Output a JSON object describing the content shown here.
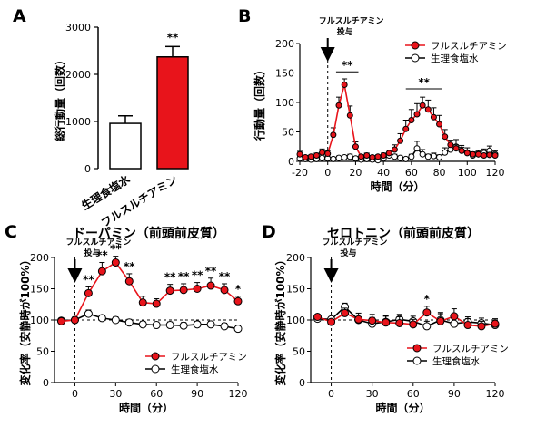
{
  "colors": {
    "drug": "#e8141b",
    "saline": "#ffffff",
    "line": "#000000"
  },
  "chart_data": [
    {
      "panel": "A",
      "type": "bar",
      "ylabel": "総行動量（回数）",
      "ylim": [
        0,
        3000
      ],
      "yticks": [
        "0",
        "1000",
        "2000",
        "3000"
      ],
      "categories": [
        "生理食塩水",
        "フルスルチアミン"
      ],
      "values": [
        960,
        2370
      ],
      "errors": [
        160,
        220
      ],
      "colors": [
        "#ffffff",
        "#e8141b"
      ],
      "significance": [
        "",
        "**"
      ]
    },
    {
      "panel": "B",
      "type": "line",
      "ylabel": "行動量（回数）",
      "xlabel": "時間（分）",
      "xlim": [
        -20,
        120
      ],
      "ylim": [
        0,
        200
      ],
      "xticks": [
        "-20",
        "0",
        "20",
        "40",
        "60",
        "80",
        "100",
        "120"
      ],
      "yticks": [
        "0",
        "50",
        "100",
        "150",
        "200"
      ],
      "injection_label": [
        "フルスルチアミン",
        "投与"
      ],
      "significance": [
        "**",
        "**"
      ],
      "legend": [
        "フルスルチアミン",
        "生理食塩水"
      ],
      "series": [
        {
          "name": "フルスルチアミン",
          "x": [
            -20,
            -16,
            -12,
            -8,
            -4,
            0,
            4,
            8,
            12,
            16,
            20,
            24,
            28,
            32,
            36,
            40,
            44,
            48,
            52,
            56,
            60,
            64,
            68,
            72,
            76,
            80,
            84,
            88,
            92,
            96,
            100,
            104,
            108,
            112,
            116,
            120
          ],
          "y": [
            12,
            7,
            8,
            10,
            15,
            13,
            45,
            95,
            130,
            78,
            25,
            8,
            10,
            7,
            8,
            10,
            14,
            20,
            35,
            55,
            70,
            80,
            95,
            88,
            75,
            63,
            42,
            28,
            22,
            18,
            14,
            12,
            12,
            10,
            11,
            10
          ],
          "err": [
            5,
            3,
            3,
            4,
            6,
            5,
            12,
            14,
            10,
            16,
            8,
            3,
            4,
            3,
            3,
            4,
            5,
            8,
            12,
            15,
            18,
            18,
            14,
            16,
            16,
            15,
            12,
            8,
            6,
            6,
            5,
            4,
            4,
            3,
            4,
            3
          ]
        },
        {
          "name": "生理食塩水",
          "x": [
            -20,
            -16,
            -12,
            -8,
            -4,
            0,
            4,
            8,
            12,
            16,
            20,
            24,
            28,
            32,
            36,
            40,
            44,
            48,
            52,
            56,
            60,
            64,
            68,
            72,
            76,
            80,
            84,
            88,
            92,
            96,
            100,
            104,
            108,
            112,
            116,
            120
          ],
          "y": [
            5,
            4,
            3,
            4,
            6,
            5,
            4,
            6,
            7,
            8,
            5,
            3,
            4,
            3,
            2,
            5,
            10,
            8,
            6,
            4,
            8,
            22,
            12,
            8,
            9,
            7,
            15,
            20,
            25,
            18,
            15,
            10,
            12,
            14,
            18,
            12
          ],
          "err": [
            3,
            2,
            2,
            2,
            3,
            3,
            2,
            3,
            3,
            4,
            3,
            2,
            2,
            2,
            1,
            3,
            4,
            4,
            3,
            2,
            4,
            12,
            8,
            4,
            5,
            4,
            8,
            10,
            12,
            9,
            8,
            5,
            6,
            7,
            8,
            6
          ]
        }
      ]
    },
    {
      "panel": "C",
      "type": "line",
      "title": "ドーパミン（前頭前皮質）",
      "ylabel": "変化率（安静時が100%）",
      "xlabel": "時間（分）",
      "xlim": [
        -15,
        120
      ],
      "ylim": [
        0,
        200
      ],
      "xticks": [
        "0",
        "30",
        "60",
        "90",
        "120"
      ],
      "yticks": [
        "0",
        "50",
        "100",
        "150",
        "200"
      ],
      "injection_label": [
        "フルスルチアミン",
        "投与"
      ],
      "legend": [
        "フルスルチアミン",
        "生理食塩水"
      ],
      "series": [
        {
          "name": "フルスルチアミン",
          "x": [
            -10,
            0,
            10,
            20,
            30,
            40,
            50,
            60,
            70,
            80,
            90,
            100,
            110,
            120
          ],
          "y": [
            98,
            100,
            143,
            178,
            192,
            162,
            128,
            126,
            147,
            148,
            150,
            155,
            148,
            130
          ],
          "err": [
            4,
            5,
            10,
            14,
            10,
            12,
            10,
            8,
            10,
            10,
            10,
            12,
            10,
            8
          ],
          "sig": [
            "",
            "",
            "**",
            "**",
            "**",
            "**",
            "",
            "",
            "**",
            "**",
            "**",
            "**",
            "**",
            "*"
          ]
        },
        {
          "name": "生理食塩水",
          "x": [
            -10,
            0,
            10,
            20,
            30,
            40,
            50,
            60,
            70,
            80,
            90,
            100,
            110,
            120
          ],
          "y": [
            99,
            100,
            110,
            103,
            100,
            96,
            93,
            92,
            92,
            91,
            93,
            93,
            90,
            86
          ],
          "err": [
            3,
            3,
            6,
            5,
            5,
            5,
            5,
            5,
            5,
            5,
            5,
            5,
            5,
            5
          ]
        }
      ]
    },
    {
      "panel": "D",
      "type": "line",
      "title": "セロトニン（前頭前皮質）",
      "ylabel": "変化率（安静時が100%）",
      "xlabel": "時間（分）",
      "xlim": [
        -15,
        120
      ],
      "ylim": [
        0,
        200
      ],
      "xticks": [
        "0",
        "30",
        "60",
        "90",
        "120"
      ],
      "yticks": [
        "0",
        "50",
        "100",
        "150",
        "200"
      ],
      "injection_label": [
        "フルスルチアミン",
        "投与"
      ],
      "legend": [
        "フルスルチアミン",
        "生理食塩水"
      ],
      "series": [
        {
          "name": "フルスルチアミン",
          "x": [
            -10,
            0,
            10,
            20,
            30,
            40,
            50,
            60,
            70,
            80,
            90,
            100,
            110,
            120
          ],
          "y": [
            105,
            97,
            111,
            101,
            99,
            96,
            95,
            93,
            112,
            98,
            106,
            92,
            90,
            94
          ],
          "err": [
            4,
            4,
            8,
            10,
            10,
            10,
            10,
            8,
            10,
            14,
            12,
            10,
            8,
            8
          ],
          "sig": [
            "",
            "",
            "",
            "",
            "",
            "",
            "",
            "",
            "*",
            "",
            "",
            "",
            "",
            ""
          ]
        },
        {
          "name": "生理食塩水",
          "x": [
            -10,
            0,
            10,
            20,
            30,
            40,
            50,
            60,
            70,
            80,
            90,
            100,
            110,
            120
          ],
          "y": [
            102,
            101,
            121,
            100,
            94,
            97,
            101,
            98,
            90,
            100,
            94,
            97,
            95,
            92
          ],
          "err": [
            4,
            4,
            6,
            8,
            10,
            10,
            8,
            8,
            8,
            10,
            8,
            8,
            8,
            8
          ]
        }
      ]
    }
  ]
}
